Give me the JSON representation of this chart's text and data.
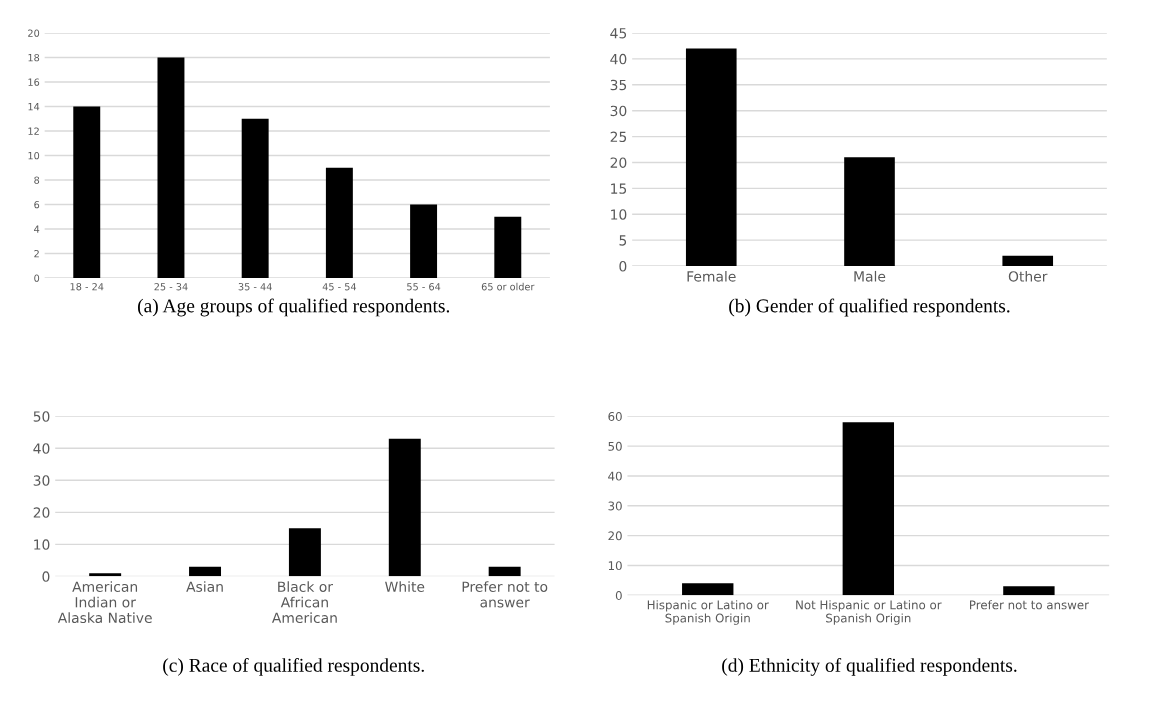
{
  "chart_data": [
    {
      "type": "bar",
      "title": "(a) Age groups of qualified respondents.",
      "categories": [
        "18 - 24",
        "25 - 34",
        "35 - 44",
        "45 - 54",
        "55 - 64",
        "65 or older"
      ],
      "values": [
        14,
        18,
        13,
        9,
        6,
        5
      ],
      "color": "#000000",
      "ylim": [
        0,
        20
      ],
      "yticks": [
        0,
        2,
        4,
        6,
        8,
        10,
        12,
        14,
        16,
        18,
        20
      ],
      "grid": "y",
      "legend": false
    },
    {
      "type": "bar",
      "title": "(b) Gender of qualified respondents.",
      "categories": [
        "Female",
        "Male",
        "Other"
      ],
      "values": [
        42,
        21,
        2
      ],
      "color": "#000000",
      "ylim": [
        0,
        45
      ],
      "yticks": [
        0,
        5,
        10,
        15,
        20,
        25,
        30,
        35,
        40,
        45
      ],
      "grid": "y",
      "legend": false
    },
    {
      "type": "bar",
      "title": "(c) Race of qualified respondents.",
      "categories": [
        "American\nIndian or\nAlaska Native",
        "Asian",
        "Black or\nAfrican\nAmerican",
        "White",
        "Prefer not to\nanswer"
      ],
      "values": [
        1,
        3,
        15,
        43,
        3
      ],
      "color": "#000000",
      "ylim": [
        0,
        50
      ],
      "yticks": [
        0,
        10,
        20,
        30,
        40,
        50
      ],
      "grid": "y",
      "legend": false
    },
    {
      "type": "bar",
      "title": "(d) Ethnicity of qualified respondents.",
      "categories": [
        "Hispanic or Latino or\nSpanish Origin",
        "Not Hispanic or Latino or\nSpanish Origin",
        "Prefer not to answer"
      ],
      "values": [
        4,
        58,
        3
      ],
      "color": "#000000",
      "ylim": [
        0,
        60
      ],
      "yticks": [
        0,
        10,
        20,
        30,
        40,
        50,
        60
      ],
      "grid": "y",
      "legend": false
    }
  ]
}
